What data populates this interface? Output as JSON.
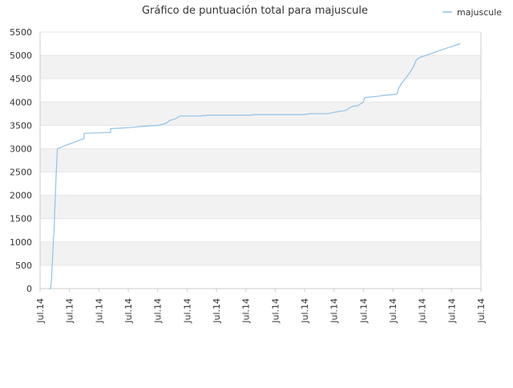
{
  "chart_data": {
    "type": "line",
    "title": "Gráfico de puntuación total para majuscule",
    "xlabel": "",
    "ylabel": "",
    "x_ticks": [
      "Jul.14",
      "Jul.14",
      "Jul.14",
      "Jul.14",
      "Jul.14",
      "Jul.14",
      "Jul.14",
      "Jul.14",
      "Jul.14",
      "Jul.14",
      "Jul.14",
      "Jul.14",
      "Jul.14",
      "Jul.14",
      "Jul.14",
      "Jul.14"
    ],
    "y_ticks": [
      0,
      500,
      1000,
      1500,
      2000,
      2500,
      3000,
      3500,
      4000,
      4500,
      5000,
      5500
    ],
    "ylim": [
      0,
      5500
    ],
    "xlim": [
      0,
      15
    ],
    "grid": true,
    "alternating_bands": true,
    "legend_position": "top-right",
    "colors": {
      "line": "#8fc3ea",
      "band": "#f2f2f2",
      "axis": "#cccccc"
    },
    "series": [
      {
        "name": "majuscule",
        "points": [
          [
            0.31,
            0
          ],
          [
            0.36,
            0
          ],
          [
            0.39,
            200
          ],
          [
            0.42,
            600
          ],
          [
            0.45,
            1000
          ],
          [
            0.48,
            1300
          ],
          [
            0.5,
            1700
          ],
          [
            0.52,
            2000
          ],
          [
            0.55,
            2500
          ],
          [
            0.56,
            2600
          ],
          [
            0.59,
            3000
          ],
          [
            1.0,
            3100
          ],
          [
            1.5,
            3220
          ],
          [
            1.5,
            3240
          ],
          [
            1.5,
            3260
          ],
          [
            1.5,
            3280
          ],
          [
            1.5,
            3300
          ],
          [
            1.5,
            3320
          ],
          [
            1.5,
            3330
          ],
          [
            2.0,
            3340
          ],
          [
            2.4,
            3350
          ],
          [
            2.4,
            3360
          ],
          [
            2.4,
            3370
          ],
          [
            2.4,
            3380
          ],
          [
            2.4,
            3390
          ],
          [
            2.4,
            3400
          ],
          [
            2.4,
            3410
          ],
          [
            2.4,
            3420
          ],
          [
            2.4,
            3430
          ],
          [
            2.72,
            3440
          ],
          [
            3.0,
            3450
          ],
          [
            3.5,
            3480
          ],
          [
            4.0,
            3500
          ],
          [
            4.1,
            3510
          ],
          [
            4.1,
            3520
          ],
          [
            4.2,
            3520
          ],
          [
            4.2,
            3530
          ],
          [
            4.3,
            3550
          ],
          [
            4.4,
            3600
          ],
          [
            4.6,
            3640
          ],
          [
            4.65,
            3660
          ],
          [
            4.7,
            3680
          ],
          [
            4.75,
            3700
          ],
          [
            5.5,
            3700
          ],
          [
            5.5,
            3710
          ],
          [
            5.6,
            3710
          ],
          [
            5.7,
            3720
          ],
          [
            7.0,
            3720
          ],
          [
            7.2,
            3720
          ],
          [
            7.25,
            3730
          ],
          [
            8.5,
            3730
          ],
          [
            9.0,
            3730
          ],
          [
            9.05,
            3740
          ],
          [
            9.1,
            3740
          ],
          [
            9.15,
            3745
          ],
          [
            9.2,
            3750
          ],
          [
            9.8,
            3750
          ],
          [
            10.0,
            3780
          ],
          [
            10.4,
            3820
          ],
          [
            10.45,
            3840
          ],
          [
            10.5,
            3860
          ],
          [
            10.55,
            3880
          ],
          [
            10.6,
            3900
          ],
          [
            10.65,
            3910
          ],
          [
            10.8,
            3920
          ],
          [
            10.85,
            3940
          ],
          [
            10.9,
            3960
          ],
          [
            10.95,
            3980
          ],
          [
            11.0,
            4000
          ],
          [
            11.02,
            4060
          ],
          [
            11.05,
            4090
          ],
          [
            11.1,
            4100
          ],
          [
            11.6,
            4130
          ],
          [
            11.62,
            4140
          ],
          [
            12.0,
            4160
          ],
          [
            12.1,
            4170
          ],
          [
            12.15,
            4180
          ],
          [
            12.2,
            4300
          ],
          [
            12.3,
            4400
          ],
          [
            12.4,
            4480
          ],
          [
            12.5,
            4560
          ],
          [
            12.6,
            4650
          ],
          [
            12.7,
            4750
          ],
          [
            12.75,
            4830
          ],
          [
            12.8,
            4900
          ],
          [
            12.85,
            4930
          ],
          [
            12.9,
            4950
          ],
          [
            13.8,
            5150
          ],
          [
            14.3,
            5250
          ]
        ]
      }
    ]
  }
}
